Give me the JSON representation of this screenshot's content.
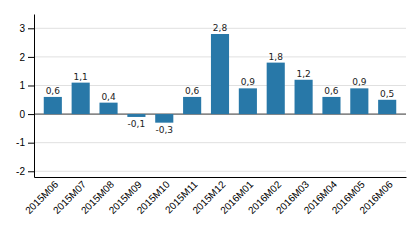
{
  "chart_data": {
    "type": "bar",
    "categories": [
      "2015M06",
      "2015M07",
      "2015M08",
      "2015M09",
      "2015M10",
      "2015M11",
      "2015M12",
      "2016M01",
      "2016M02",
      "2016M03",
      "2016M04",
      "2016M05",
      "2016M06"
    ],
    "values": [
      0.6,
      1.1,
      0.4,
      -0.1,
      -0.3,
      0.6,
      2.8,
      0.9,
      1.8,
      1.2,
      0.6,
      0.9,
      0.5
    ],
    "value_labels": [
      "0,6",
      "1,1",
      "0,4",
      "-0,1",
      "-0,3",
      "0,6",
      "2,8",
      "0,9",
      "1,8",
      "1,2",
      "0,6",
      "0,9",
      "0,5"
    ],
    "color": "#2878a8",
    "ylim": [
      -2.2,
      3.5
    ],
    "yticks": [
      -2,
      -1,
      0,
      1,
      2,
      3
    ],
    "grid": true,
    "data_labels": true
  }
}
